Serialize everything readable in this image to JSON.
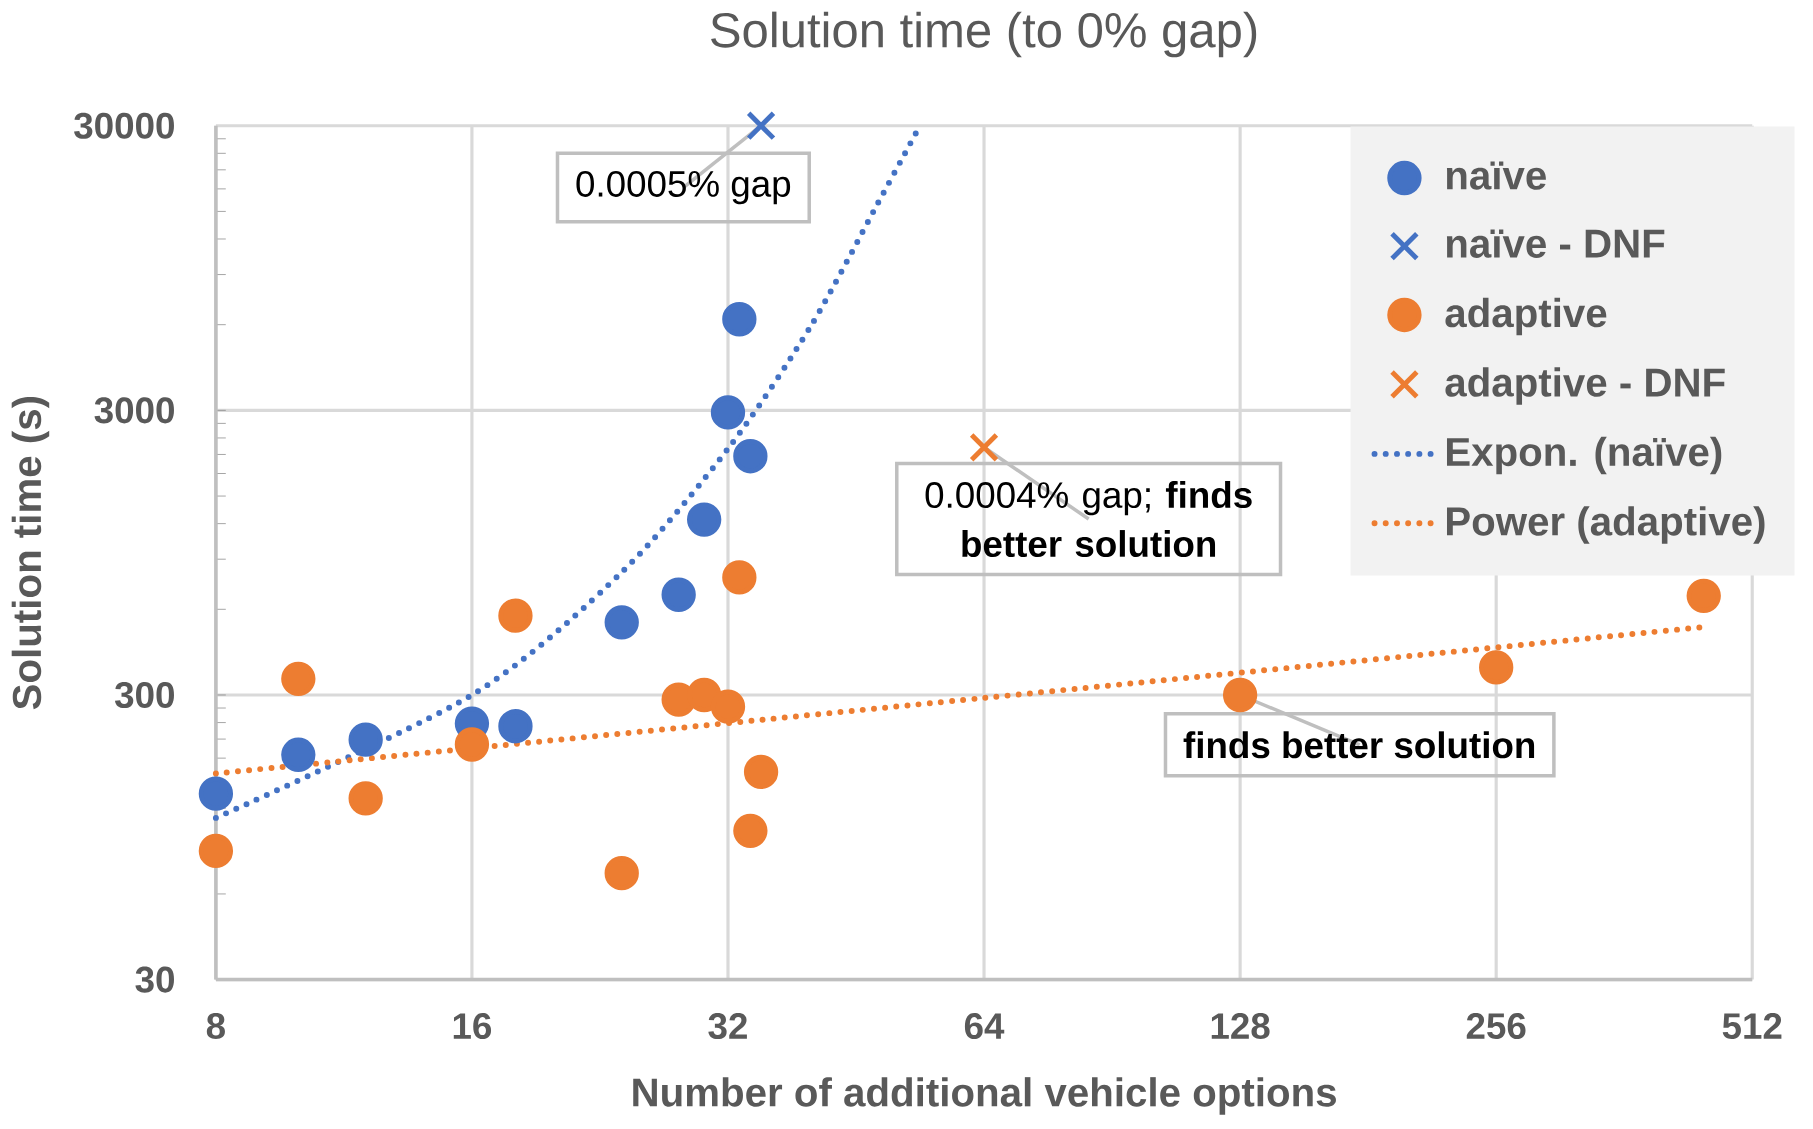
{
  "chart_data": {
    "type": "scatter",
    "title": "Solution time (to 0% gap)",
    "xlabel": "Number of additional vehicle options",
    "ylabel": "Solution time (s)",
    "log": "xy",
    "grid": true,
    "legend": "top right",
    "xlim": [
      8,
      512
    ],
    "xticks": [
      8,
      16,
      32,
      64,
      128,
      256,
      512
    ],
    "ylim": [
      30,
      30000
    ],
    "yticks": [
      30,
      300,
      3000,
      30000
    ],
    "series": [
      {
        "name": "naïve",
        "type": "scatter",
        "marker": "circle",
        "color": "#4472c4",
        "x": [
          8,
          10,
          12,
          16,
          18,
          24,
          28,
          30,
          32,
          33,
          34
        ],
        "values": [
          135,
          185,
          209,
          238,
          233,
          540,
          675,
          1240,
          2950,
          6270,
          2070
        ]
      },
      {
        "name": "naïve - DNF",
        "type": "scatter",
        "marker": "cross",
        "color": "#4472c4",
        "x": [
          35
        ],
        "values": [
          30000
        ]
      },
      {
        "name": "adaptive",
        "type": "scatter",
        "marker": "circle",
        "color": "#ed7d31",
        "x": [
          8,
          10,
          12,
          16,
          18,
          24,
          28,
          30,
          32,
          33,
          34,
          35,
          128,
          256,
          449
        ],
        "values": [
          85,
          342,
          130,
          201,
          570,
          71,
          289,
          300,
          273,
          777,
          100,
          161,
          300,
          375,
          669
        ]
      },
      {
        "name": "adaptive - DNF",
        "type": "scatter",
        "marker": "cross",
        "color": "#ed7d31",
        "x": [
          64
        ],
        "values": [
          2225
        ]
      },
      {
        "name": "Expon. (naïve)",
        "type": "line",
        "line_style": "dotted",
        "color": "#4472c4",
        "x": [
          8,
          16,
          24,
          32,
          40,
          48,
          53.8
        ],
        "values": [
          111,
          300,
          810,
          2200,
          5900,
          16000,
          30000
        ]
      },
      {
        "name": "Power (adaptive)",
        "type": "line",
        "line_style": "dotted",
        "color": "#ed7d31",
        "x": [
          8,
          64,
          449
        ],
        "values": [
          159,
          293,
          520
        ]
      }
    ],
    "annotations": [
      {
        "text": "0.0005% gap",
        "x": 35,
        "y": 30000
      },
      {
        "text": "0.0004% gap; **finds better solution**",
        "x": 64,
        "y": 2225
      },
      {
        "text": "finds better solution",
        "x": 128,
        "y": 300
      }
    ]
  }
}
